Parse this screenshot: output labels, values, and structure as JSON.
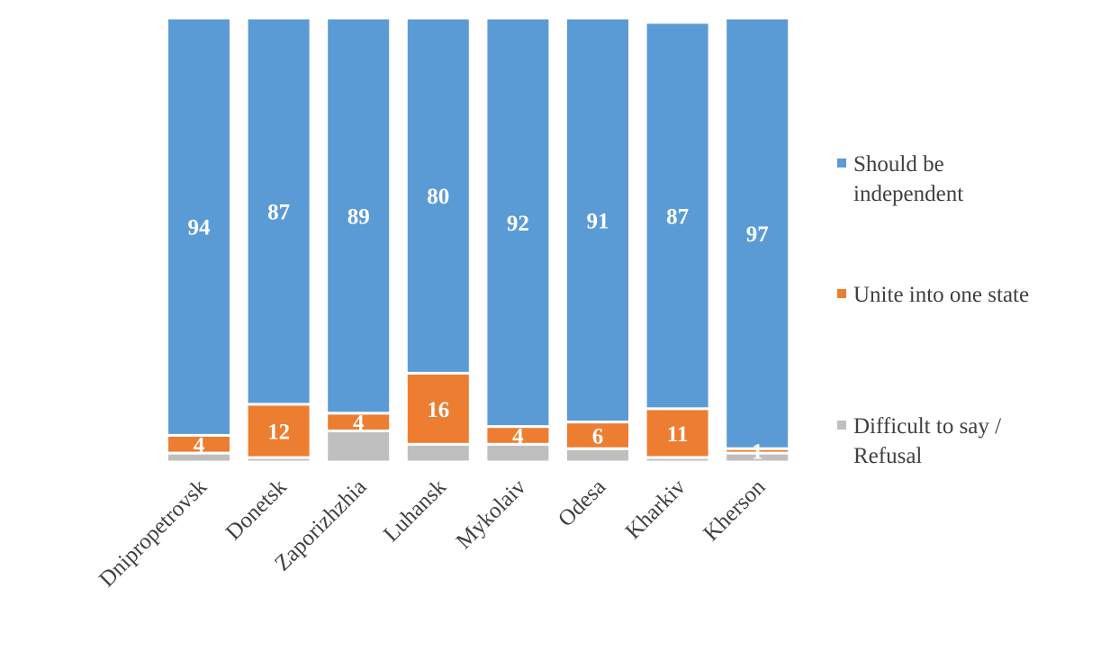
{
  "chart_data": {
    "type": "bar",
    "stacked": true,
    "categories": [
      "Dnipropetrovsk",
      "Donetsk",
      "Zaporizhzhia",
      "Luhansk",
      "Mykolaiv",
      "Odesa",
      "Kharkiv",
      "Kherson"
    ],
    "series": [
      {
        "name": "Difficult to say / Refusal",
        "color": "#bfbfbf",
        "values": [
          2,
          1,
          7,
          4,
          4,
          3,
          1,
          2
        ]
      },
      {
        "name": "Unite into one state",
        "color": "#ed7d31",
        "values": [
          4,
          12,
          4,
          16,
          4,
          6,
          11,
          1
        ]
      },
      {
        "name": "Should be independent",
        "color": "#5b9bd5",
        "values": [
          94,
          87,
          89,
          80,
          92,
          91,
          87,
          97
        ]
      }
    ],
    "value_labels": {
      "Difficult to say / Refusal": [
        "",
        "",
        "",
        "",
        "",
        "",
        "",
        ""
      ],
      "Unite into one state": [
        "4",
        "12",
        "4",
        "16",
        "4",
        "6",
        "11",
        "1"
      ],
      "Should be independent": [
        "94",
        "87",
        "89",
        "80",
        "92",
        "91",
        "87",
        "97"
      ]
    },
    "legend": [
      {
        "label_lines": [
          "Should be",
          "independent"
        ],
        "color": "#5b9bd5"
      },
      {
        "label_lines": [
          "Unite into one state"
        ],
        "color": "#ed7d31"
      },
      {
        "label_lines": [
          "Difficult to say /",
          "Refusal"
        ],
        "color": "#bfbfbf"
      }
    ],
    "legend_position": "right",
    "ylim": [
      0,
      100
    ],
    "grid": false
  }
}
